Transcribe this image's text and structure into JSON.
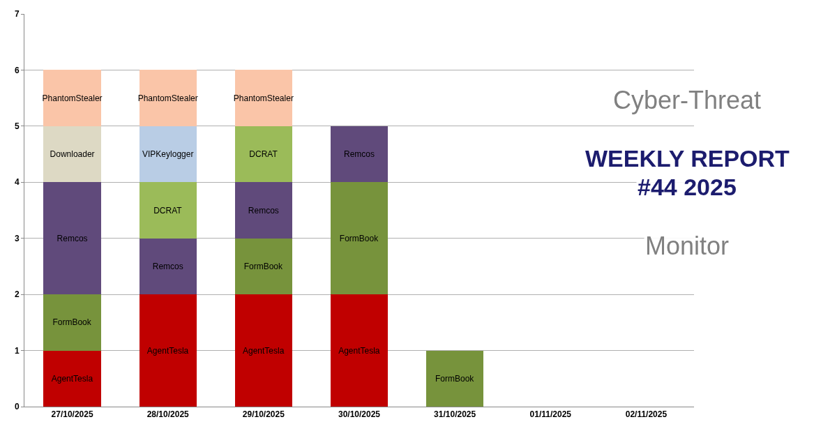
{
  "chart_data": {
    "type": "bar",
    "stacked": true,
    "categories": [
      "27/10/2025",
      "28/10/2025",
      "29/10/2025",
      "30/10/2025",
      "31/10/2025",
      "01/11/2025",
      "02/11/2025"
    ],
    "series": [
      {
        "name": "AgentTesla",
        "color": "#c00000",
        "values": [
          1,
          2,
          2,
          2,
          null,
          null,
          null
        ]
      },
      {
        "name": "FormBook",
        "color": "#77933c",
        "values": [
          1,
          null,
          1,
          2,
          1,
          null,
          null
        ]
      },
      {
        "name": "Remcos",
        "color": "#604a7b",
        "values": [
          2,
          1,
          1,
          1,
          null,
          null,
          null
        ]
      },
      {
        "name": "DCRAT",
        "color": "#9bbb59",
        "values": [
          null,
          1,
          1,
          null,
          null,
          null,
          null
        ]
      },
      {
        "name": "Downloader",
        "color": "#ddd9c4",
        "values": [
          1,
          null,
          null,
          null,
          null,
          null,
          null
        ]
      },
      {
        "name": "VIPKeylogger",
        "color": "#b9cde5",
        "values": [
          null,
          1,
          null,
          null,
          null,
          null,
          null
        ]
      },
      {
        "name": "PhantomStealer",
        "color": "#fac5a8",
        "values": [
          1,
          1,
          1,
          null,
          null,
          null,
          null
        ]
      }
    ],
    "ylim": [
      0,
      7
    ],
    "yticks": [
      0,
      1,
      2,
      3,
      4,
      5,
      6,
      7
    ],
    "grid": "y",
    "legend": false,
    "annotations": [
      "Cyber-Threat",
      "WEEKLY REPORT",
      "#44 2025",
      "Monitor"
    ]
  }
}
